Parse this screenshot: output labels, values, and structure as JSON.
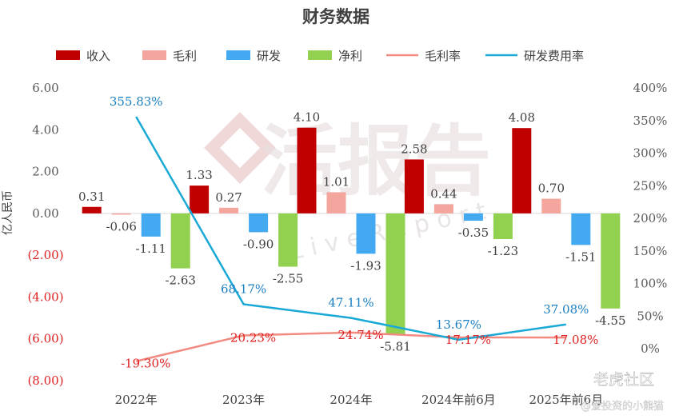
{
  "chart_data": {
    "type": "bar",
    "title": "财务数据",
    "ylabel": "亿人民币",
    "categories": [
      "2022年",
      "2023年",
      "2024年",
      "2024年前6月",
      "2025年前6月"
    ],
    "left_axis": {
      "ticks": [
        6,
        4,
        2,
        0,
        -2,
        -4,
        -6,
        -8
      ],
      "tick_labels": [
        "6.00",
        "4.00",
        "2.00",
        "0.00",
        "(2.00)",
        "(4.00)",
        "(6.00)",
        "(8.00)"
      ],
      "ylim": [
        -8,
        6
      ]
    },
    "right_axis": {
      "ticks": [
        400,
        350,
        300,
        250,
        200,
        150,
        100,
        50,
        0
      ],
      "tick_labels": [
        "400%",
        "350%",
        "300%",
        "250%",
        "200%",
        "150%",
        "100%",
        "50%",
        "0%"
      ],
      "ylim": [
        0,
        400
      ]
    },
    "series": [
      {
        "name": "收入",
        "kind": "bar",
        "color": "#c00000",
        "values": [
          0.31,
          1.33,
          4.1,
          2.58,
          4.08
        ],
        "labels": [
          "0.31",
          "1.33",
          "4.10",
          "2.58",
          "4.08"
        ]
      },
      {
        "name": "毛利",
        "kind": "bar",
        "color": "#f4a59d",
        "values": [
          -0.06,
          0.27,
          1.01,
          0.44,
          0.7
        ],
        "labels": [
          "-0.06",
          "0.27",
          "1.01",
          "0.44",
          "0.70"
        ]
      },
      {
        "name": "研发",
        "kind": "bar",
        "color": "#43a9f0",
        "values": [
          -1.11,
          -0.9,
          -1.93,
          -0.35,
          -1.51
        ],
        "labels": [
          "-1.11",
          "-0.90",
          "-1.93",
          "-0.35",
          "-1.51"
        ]
      },
      {
        "name": "净利",
        "kind": "bar",
        "color": "#92d050",
        "values": [
          -2.63,
          -2.55,
          -5.81,
          -1.23,
          -4.55
        ],
        "labels": [
          "-2.63",
          "-2.55",
          "-5.81",
          "-1.23",
          "-4.55"
        ]
      },
      {
        "name": "毛利率",
        "kind": "line",
        "axis": "right",
        "color": "#f28b82",
        "values": [
          -19.3,
          20.23,
          24.74,
          17.17,
          17.08
        ],
        "labels": [
          "-19.30%",
          "20.23%",
          "24.74%",
          "17.17%",
          "17.08%"
        ],
        "label_color": "#e02020"
      },
      {
        "name": "研发费用率",
        "kind": "line",
        "axis": "right",
        "color": "#1aa9d6",
        "values": [
          355.83,
          68.17,
          47.11,
          13.67,
          37.08
        ],
        "labels": [
          "355.83%",
          "68.17%",
          "47.11%",
          "13.67%",
          "37.08%"
        ],
        "label_color": "#1a7fc0"
      }
    ],
    "legend_position": "top",
    "grid": false
  },
  "watermark": {
    "logo_text": "活报告",
    "sub_text": "LiveReport",
    "corner_brand": "老虎社区",
    "corner_handle": "@爱投资的小熊猫"
  }
}
